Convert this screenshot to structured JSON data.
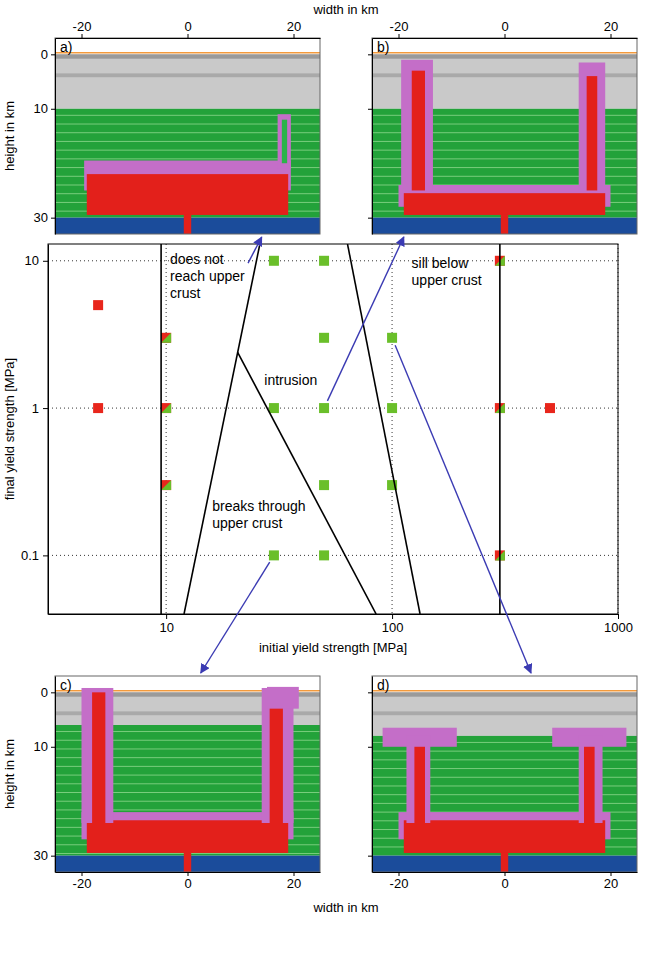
{
  "chart_data": [
    {
      "type": "scatter",
      "xlabel": "initial yield strength [MPa]",
      "ylabel": "final yield strength [MPa]",
      "log": true,
      "grid": true,
      "xlim": [
        3,
        1000
      ],
      "ylim": [
        0.04,
        13
      ],
      "xticks": [
        10,
        100,
        1000
      ],
      "yticks": [
        0.1,
        1,
        10
      ],
      "series": [
        {
          "type": "scatter",
          "marker": "square",
          "color": "#6abf2a",
          "x": [
            30,
            30,
            30,
            50,
            50,
            50,
            50,
            50,
            100,
            100,
            100
          ],
          "values": [
            10,
            1,
            0.1,
            10,
            3,
            1,
            0.3,
            0.1,
            3,
            1,
            0.3
          ]
        },
        {
          "type": "scatter",
          "marker": "square",
          "color": "#e8261c",
          "x": [
            5,
            5,
            10,
            10,
            10,
            300,
            300,
            300,
            500
          ],
          "values": [
            5,
            1,
            3,
            1,
            0.3,
            10,
            1,
            0.1,
            1
          ]
        },
        {
          "type": "scatter",
          "marker": "half-square",
          "color": "#6abf2a",
          "x": [
            10,
            10,
            10,
            300,
            300,
            300
          ],
          "values": [
            3,
            1,
            0.3,
            10,
            1,
            0.1
          ]
        },
        {
          "type": "line",
          "color": "#000000",
          "x": [
            9.5,
            9.5
          ],
          "values": [
            0.04,
            13
          ]
        },
        {
          "type": "line",
          "color": "#000000",
          "x": [
            300,
            300
          ],
          "values": [
            0.04,
            13
          ]
        },
        {
          "type": "line",
          "color": "#000000",
          "x": [
            26,
            12
          ],
          "values": [
            13,
            0.04
          ]
        },
        {
          "type": "line",
          "color": "#000000",
          "x": [
            20.7,
            85
          ],
          "values": [
            2.4,
            0.04
          ]
        },
        {
          "type": "line",
          "color": "#000000",
          "x": [
            63.5,
            133
          ],
          "values": [
            13,
            0.04
          ]
        }
      ],
      "annotations": [
        {
          "text": [
            "does not",
            "reach upper",
            "crust"
          ]
        },
        {
          "text": [
            "sill below",
            "upper crust"
          ]
        },
        {
          "text": [
            "intrusion"
          ]
        },
        {
          "text": [
            "breaks through",
            "upper crust"
          ]
        }
      ]
    },
    {
      "type": "image",
      "title": "a)",
      "xlabel": "width in km",
      "ylabel": "height in km",
      "xlim": [
        -25,
        25
      ],
      "ylim": [
        -3,
        33
      ],
      "xticks": [
        -20,
        0,
        20
      ],
      "yticks": [
        0,
        10,
        30
      ]
    },
    {
      "type": "image",
      "title": "b)",
      "tick_labels": "x",
      "xlim": [
        -25,
        25
      ],
      "ylim": [
        -3,
        33
      ],
      "xticks": [
        -20,
        0,
        20
      ],
      "yticks": [
        0,
        10,
        30
      ]
    },
    {
      "type": "image",
      "title": "c)",
      "xlabel": "width in km",
      "ylabel": "height in km",
      "xlim": [
        -25,
        25
      ],
      "ylim": [
        -3,
        33
      ],
      "xticks": [
        -20,
        0,
        20
      ],
      "yticks": [
        0,
        10,
        30
      ]
    },
    {
      "type": "image",
      "title": "d)",
      "tick_labels": "x",
      "xlim": [
        -25,
        25
      ],
      "ylim": [
        -3,
        33
      ],
      "xticks": [
        -20,
        0,
        20
      ],
      "yticks": [
        0,
        10,
        30
      ]
    }
  ]
}
